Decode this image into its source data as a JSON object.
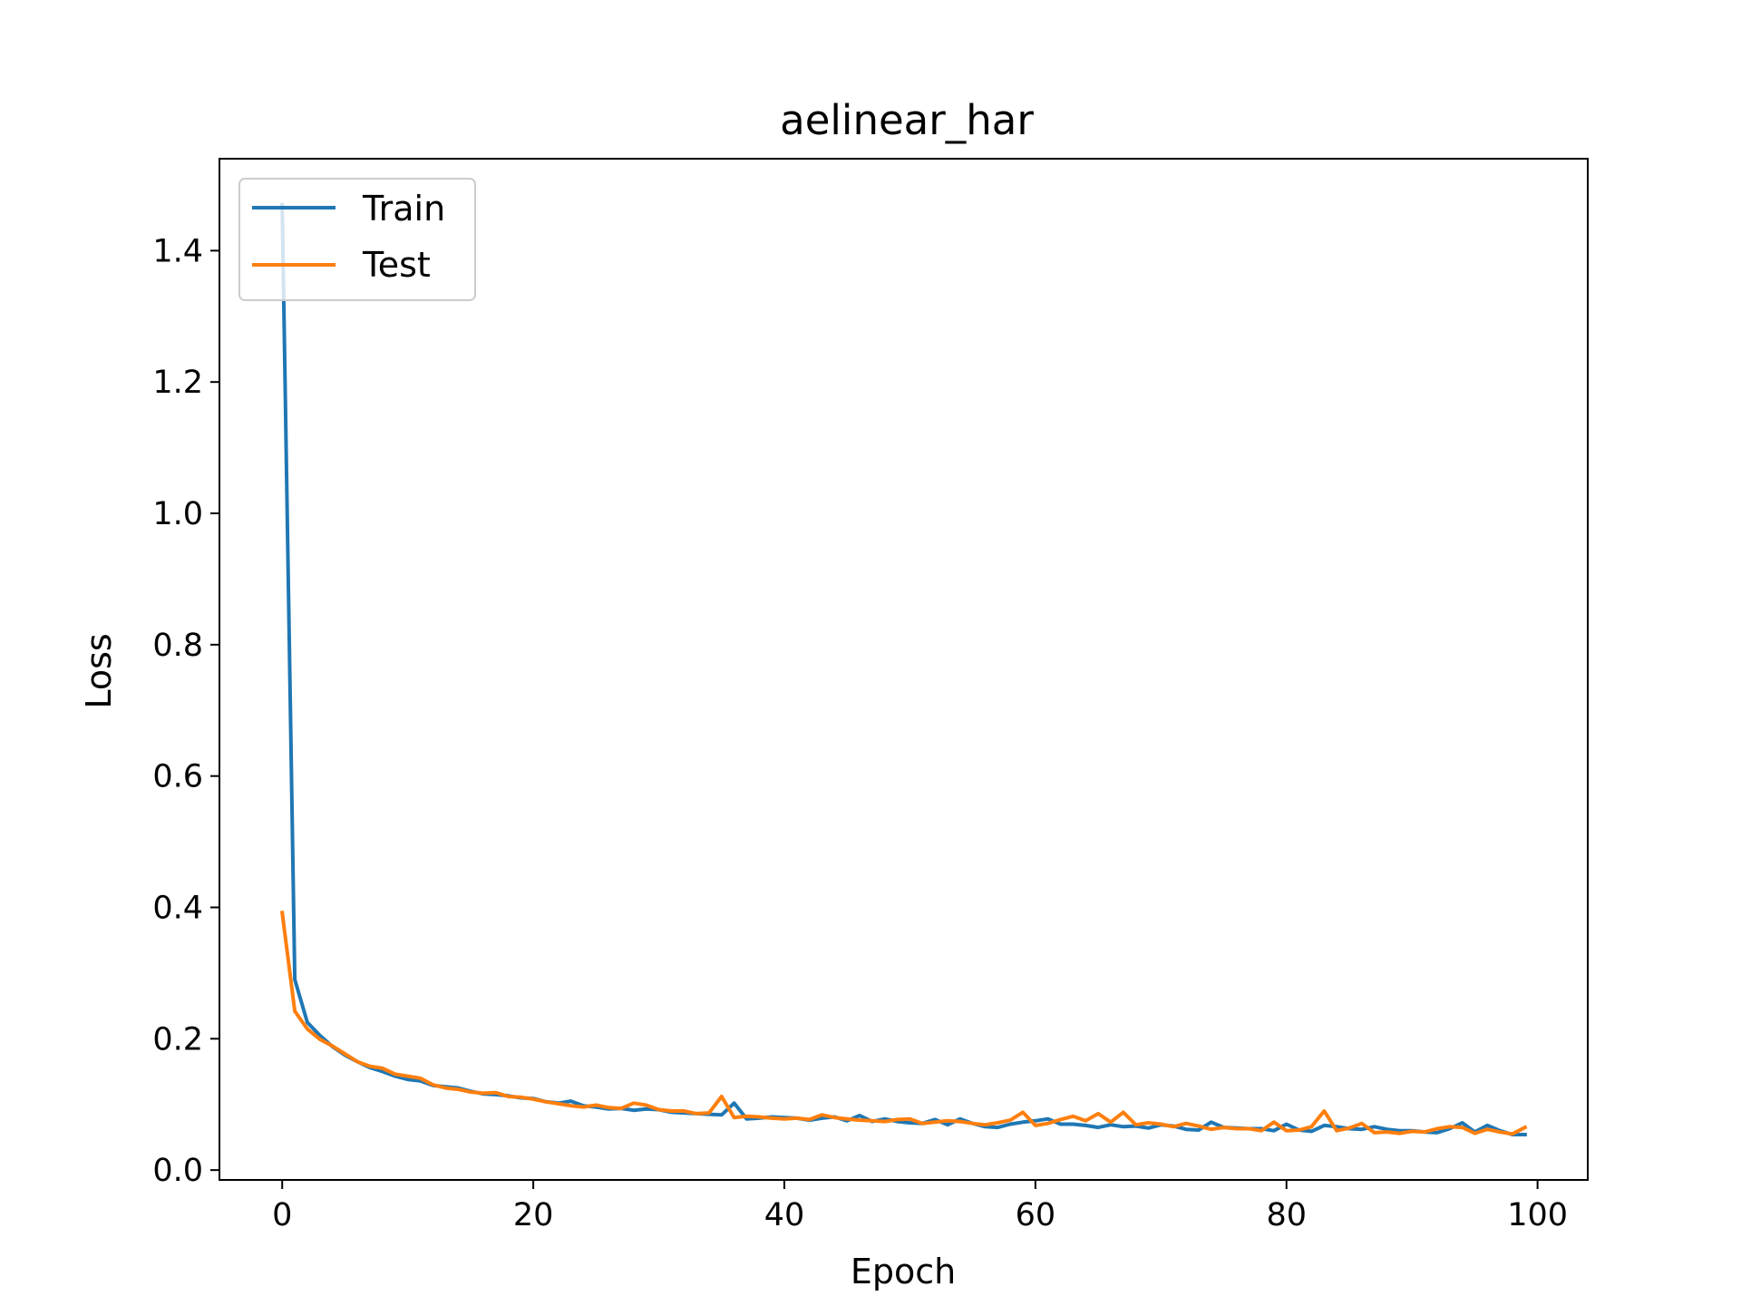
{
  "chart_data": {
    "type": "line",
    "title": "aelinear_har",
    "xlabel": "Epoch",
    "ylabel": "Loss",
    "xlim": [
      -5,
      104
    ],
    "ylim": [
      -0.015,
      1.54
    ],
    "xticks": [
      0,
      20,
      40,
      60,
      80,
      100
    ],
    "yticks": [
      0.0,
      0.2,
      0.4,
      0.6,
      0.8,
      1.0,
      1.2,
      1.4
    ],
    "xtick_labels": [
      "0",
      "20",
      "40",
      "60",
      "80",
      "100"
    ],
    "ytick_labels": [
      "0.0",
      "0.2",
      "0.4",
      "0.6",
      "0.8",
      "1.0",
      "1.2",
      "1.4"
    ],
    "grid": false,
    "legend": {
      "position": "upper left"
    },
    "series": [
      {
        "name": "Train",
        "color": "#1f77b4",
        "values": [
          1.47,
          0.29,
          0.225,
          0.205,
          0.188,
          0.175,
          0.165,
          0.156,
          0.15,
          0.143,
          0.138,
          0.136,
          0.129,
          0.127,
          0.125,
          0.12,
          0.116,
          0.115,
          0.113,
          0.11,
          0.109,
          0.104,
          0.102,
          0.105,
          0.098,
          0.096,
          0.093,
          0.094,
          0.091,
          0.093,
          0.092,
          0.088,
          0.087,
          0.086,
          0.085,
          0.084,
          0.102,
          0.078,
          0.079,
          0.081,
          0.08,
          0.079,
          0.076,
          0.079,
          0.081,
          0.075,
          0.083,
          0.074,
          0.078,
          0.074,
          0.072,
          0.071,
          0.077,
          0.069,
          0.078,
          0.071,
          0.066,
          0.065,
          0.07,
          0.073,
          0.075,
          0.078,
          0.07,
          0.07,
          0.068,
          0.065,
          0.069,
          0.066,
          0.067,
          0.064,
          0.069,
          0.067,
          0.062,
          0.061,
          0.073,
          0.065,
          0.064,
          0.063,
          0.063,
          0.06,
          0.07,
          0.061,
          0.059,
          0.068,
          0.066,
          0.063,
          0.062,
          0.066,
          0.062,
          0.06,
          0.06,
          0.058,
          0.057,
          0.063,
          0.072,
          0.058,
          0.068,
          0.06,
          0.054,
          0.054
        ]
      },
      {
        "name": "Test",
        "color": "#ff7f0e",
        "values": [
          0.392,
          0.242,
          0.215,
          0.199,
          0.189,
          0.177,
          0.165,
          0.158,
          0.155,
          0.146,
          0.143,
          0.14,
          0.13,
          0.125,
          0.123,
          0.119,
          0.117,
          0.118,
          0.112,
          0.111,
          0.108,
          0.104,
          0.101,
          0.098,
          0.096,
          0.099,
          0.095,
          0.094,
          0.102,
          0.099,
          0.092,
          0.09,
          0.09,
          0.086,
          0.087,
          0.112,
          0.08,
          0.082,
          0.081,
          0.079,
          0.078,
          0.079,
          0.077,
          0.084,
          0.08,
          0.078,
          0.076,
          0.075,
          0.074,
          0.077,
          0.078,
          0.071,
          0.073,
          0.075,
          0.074,
          0.071,
          0.069,
          0.072,
          0.076,
          0.088,
          0.068,
          0.071,
          0.077,
          0.082,
          0.075,
          0.086,
          0.073,
          0.088,
          0.069,
          0.072,
          0.07,
          0.066,
          0.071,
          0.067,
          0.062,
          0.065,
          0.063,
          0.063,
          0.06,
          0.073,
          0.06,
          0.061,
          0.066,
          0.09,
          0.06,
          0.064,
          0.071,
          0.057,
          0.058,
          0.056,
          0.059,
          0.058,
          0.063,
          0.066,
          0.065,
          0.056,
          0.062,
          0.058,
          0.055,
          0.065
        ]
      }
    ]
  }
}
